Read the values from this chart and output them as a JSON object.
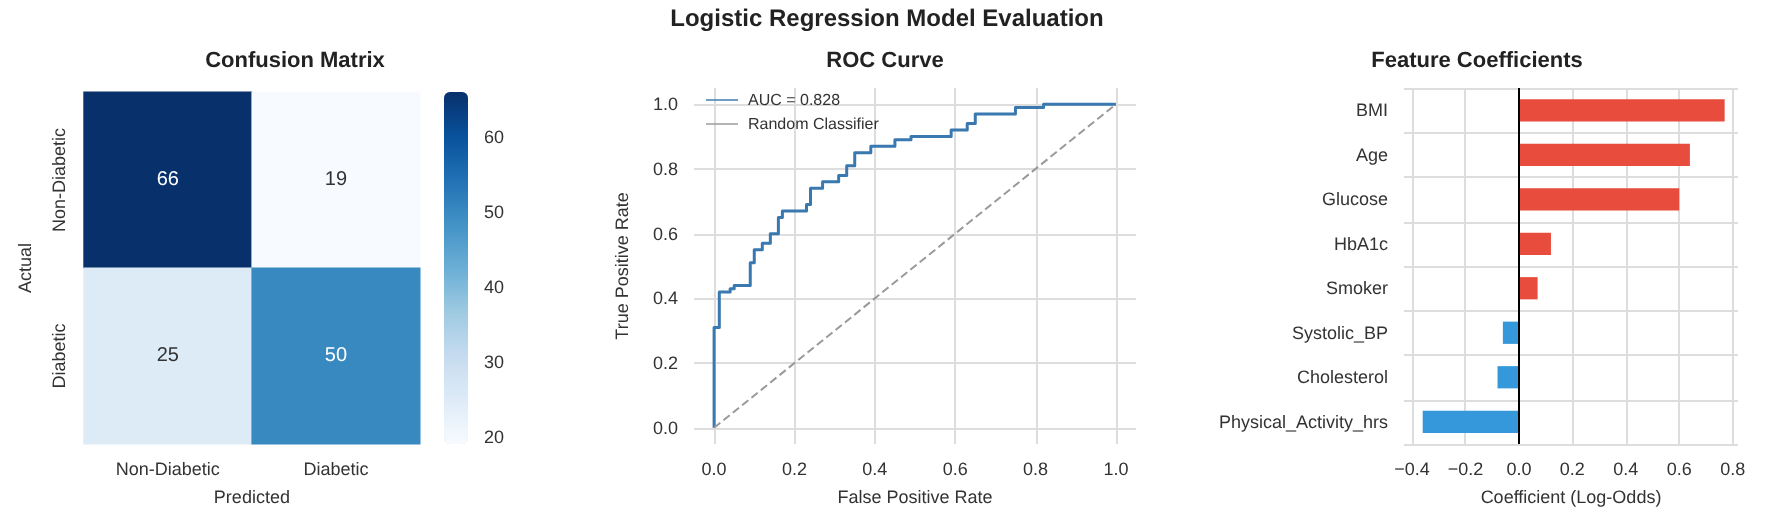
{
  "chart_data": [
    {
      "type": "other",
      "title": "Logistic Regression Model Evaluation"
    },
    {
      "type": "heatmap",
      "title": "Confusion Matrix",
      "xlabel": "Predicted",
      "ylabel": "Actual",
      "categories": [
        "Non-Diabetic",
        "Diabetic"
      ],
      "y_categories": [
        "Non-Diabetic",
        "Diabetic"
      ],
      "cells": [
        [
          66,
          19
        ],
        [
          25,
          50
        ]
      ],
      "data_labels": true,
      "clim": [
        19,
        66
      ],
      "cticks": [
        20,
        30,
        40,
        50,
        60
      ]
    },
    {
      "type": "step",
      "title": "ROC Curve",
      "xlabel": "False Positive Rate",
      "ylabel": "True Positive Rate",
      "legend": "top left",
      "grid": true,
      "xlim": [
        -0.05,
        1.05
      ],
      "ylim": [
        -0.05,
        1.05
      ],
      "xticks": [
        {
          "value": 0,
          "label": "0.0"
        },
        0.2,
        0.4,
        0.6,
        0.8,
        {
          "value": 1,
          "label": "1.0"
        }
      ],
      "yticks": [
        {
          "value": 0,
          "label": "0.0"
        },
        0.2,
        0.4,
        0.6,
        0.8,
        {
          "value": 1,
          "label": "1.0"
        }
      ],
      "series": [
        {
          "name": "AUC = 0.828",
          "type": "step",
          "color": "#3a78b0",
          "x": [
            0,
            0,
            0.013,
            0.04,
            0.05,
            0.09,
            0.1,
            0.12,
            0.14,
            0.16,
            0.17,
            0.23,
            0.24,
            0.27,
            0.31,
            0.33,
            0.35,
            0.39,
            0.45,
            0.49,
            0.59,
            0.63,
            0.65,
            0.75,
            0.82,
            1
          ],
          "values": [
            0,
            0.31,
            0.42,
            0.43,
            0.44,
            0.51,
            0.55,
            0.57,
            0.6,
            0.65,
            0.67,
            0.69,
            0.74,
            0.76,
            0.78,
            0.81,
            0.85,
            0.87,
            0.89,
            0.9,
            0.92,
            0.94,
            0.97,
            0.99,
            1,
            1
          ]
        },
        {
          "name": "Random Classifier",
          "type": "line",
          "color": "#999999",
          "line_style": "dashed",
          "x": [
            0,
            1
          ],
          "values": [
            0,
            1
          ]
        }
      ]
    },
    {
      "type": "bar",
      "orientation": "horizontal",
      "title": "Feature Coefficients",
      "xlabel": "Coefficient (Log-Odds)",
      "grid": true,
      "categories": [
        "BMI",
        "Age",
        "Glucose",
        "HbA1c",
        "Smoker",
        "Systolic_BP",
        "Cholesterol",
        "Physical_Activity_hrs"
      ],
      "values": [
        0.77,
        0.64,
        0.6,
        0.12,
        0.07,
        -0.06,
        -0.08,
        -0.36
      ],
      "colors": [
        "#e74c3c",
        "#e74c3c",
        "#e74c3c",
        "#e74c3c",
        "#e74c3c",
        "#3498db",
        "#3498db",
        "#3498db"
      ],
      "xlim": [
        -0.43,
        0.82
      ],
      "xticks": [
        {
          "value": -0.4,
          "label": "−0.4"
        },
        {
          "value": -0.2,
          "label": "−0.2"
        },
        {
          "value": 0,
          "label": "0.0"
        },
        0.2,
        0.4,
        0.6,
        0.8
      ],
      "ref_lines": [
        {
          "axis": "x",
          "value": 0,
          "color": "#000000"
        }
      ]
    }
  ]
}
